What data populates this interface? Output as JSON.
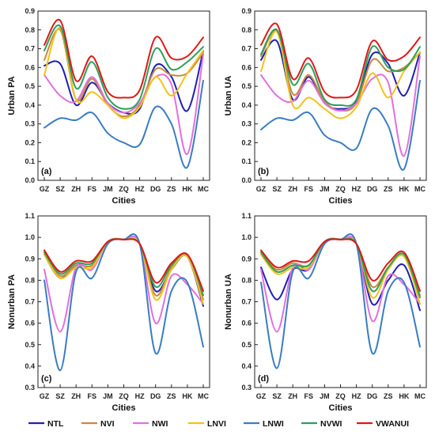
{
  "colors": {
    "NTL": "#1f1fb4",
    "NVI": "#c88a3c",
    "NWI": "#e070e0",
    "LNVI": "#f2c21a",
    "LNWI": "#3a7cc4",
    "NVWI": "#2ca05a",
    "VWANUI": "#e01818"
  },
  "legend": {
    "items": [
      "NTL",
      "NVI",
      "NWI",
      "LNVI",
      "LNWI",
      "NVWI",
      "VWANUI"
    ]
  },
  "chart_data": [
    {
      "type": "line",
      "panel_label": "(a)",
      "xlabel": "Cities",
      "ylabel": "Urban PA",
      "categories": [
        "GZ",
        "SZ",
        "ZH",
        "FS",
        "JM",
        "ZQ",
        "HZ",
        "DG",
        "ZS",
        "HK",
        "MC"
      ],
      "ylim": [
        0.0,
        0.9
      ],
      "yticks": [
        "0.0",
        "0.1",
        "0.2",
        "0.3",
        "0.4",
        "0.5",
        "0.6",
        "0.7",
        "0.8",
        "0.9"
      ],
      "series": [
        {
          "name": "NTL",
          "values": [
            0.61,
            0.62,
            0.4,
            0.52,
            0.41,
            0.36,
            0.38,
            0.61,
            0.55,
            0.37,
            0.69
          ]
        },
        {
          "name": "NVI",
          "values": [
            0.64,
            0.8,
            0.43,
            0.54,
            0.4,
            0.34,
            0.4,
            0.59,
            0.56,
            0.57,
            0.68
          ]
        },
        {
          "name": "NWI",
          "values": [
            0.56,
            0.45,
            0.42,
            0.55,
            0.41,
            0.36,
            0.41,
            0.55,
            0.51,
            0.14,
            0.67
          ]
        },
        {
          "name": "LNVI",
          "values": [
            0.56,
            0.81,
            0.43,
            0.47,
            0.4,
            0.33,
            0.39,
            0.55,
            0.45,
            0.57,
            0.69
          ]
        },
        {
          "name": "LNWI",
          "values": [
            0.28,
            0.33,
            0.32,
            0.36,
            0.25,
            0.2,
            0.19,
            0.39,
            0.3,
            0.07,
            0.53
          ]
        },
        {
          "name": "NVWI",
          "values": [
            0.69,
            0.82,
            0.49,
            0.63,
            0.44,
            0.38,
            0.43,
            0.7,
            0.59,
            0.63,
            0.71
          ]
        },
        {
          "name": "VWANUI",
          "values": [
            0.72,
            0.85,
            0.53,
            0.66,
            0.47,
            0.44,
            0.48,
            0.76,
            0.65,
            0.66,
            0.76
          ]
        }
      ]
    },
    {
      "type": "line",
      "panel_label": "(b)",
      "xlabel": "Cities",
      "ylabel": "Urban UA",
      "categories": [
        "GZ",
        "SZ",
        "ZH",
        "FS",
        "JM",
        "ZQ",
        "HZ",
        "DG",
        "ZS",
        "HK",
        "MC"
      ],
      "ylim": [
        0.0,
        0.9
      ],
      "yticks": [
        "0.0",
        "0.1",
        "0.2",
        "0.3",
        "0.4",
        "0.5",
        "0.6",
        "0.7",
        "0.8",
        "0.9"
      ],
      "series": [
        {
          "name": "NTL",
          "values": [
            0.64,
            0.74,
            0.43,
            0.55,
            0.41,
            0.38,
            0.42,
            0.67,
            0.62,
            0.45,
            0.68
          ]
        },
        {
          "name": "NVI",
          "values": [
            0.66,
            0.79,
            0.46,
            0.56,
            0.42,
            0.37,
            0.41,
            0.64,
            0.58,
            0.6,
            0.68
          ]
        },
        {
          "name": "NWI",
          "values": [
            0.56,
            0.45,
            0.42,
            0.53,
            0.41,
            0.37,
            0.41,
            0.54,
            0.52,
            0.13,
            0.66
          ]
        },
        {
          "name": "LNVI",
          "values": [
            0.58,
            0.79,
            0.4,
            0.44,
            0.38,
            0.33,
            0.39,
            0.57,
            0.44,
            0.58,
            0.68
          ]
        },
        {
          "name": "LNWI",
          "values": [
            0.27,
            0.33,
            0.32,
            0.36,
            0.24,
            0.2,
            0.17,
            0.38,
            0.29,
            0.06,
            0.53
          ]
        },
        {
          "name": "NVWI",
          "values": [
            0.67,
            0.8,
            0.51,
            0.62,
            0.43,
            0.4,
            0.43,
            0.71,
            0.6,
            0.59,
            0.71
          ]
        },
        {
          "name": "VWANUI",
          "values": [
            0.72,
            0.83,
            0.54,
            0.65,
            0.47,
            0.44,
            0.48,
            0.74,
            0.64,
            0.66,
            0.76
          ]
        }
      ]
    },
    {
      "type": "line",
      "panel_label": "(c)",
      "xlabel": "Cities",
      "ylabel": "Nonurban PA",
      "categories": [
        "GZ",
        "SZ",
        "ZH",
        "FS",
        "JM",
        "ZQ",
        "HZ",
        "DG",
        "ZS",
        "HK",
        "MC"
      ],
      "ylim": [
        0.3,
        1.1
      ],
      "yticks": [
        "0.3",
        "0.4",
        "0.5",
        "0.6",
        "0.7",
        "0.8",
        "0.9",
        "1.0",
        "1.1"
      ],
      "series": [
        {
          "name": "NTL",
          "values": [
            0.92,
            0.81,
            0.87,
            0.87,
            0.98,
            0.99,
            0.97,
            0.75,
            0.85,
            0.91,
            0.68
          ]
        },
        {
          "name": "NVI",
          "values": [
            0.93,
            0.82,
            0.87,
            0.87,
            0.98,
            0.99,
            0.97,
            0.73,
            0.86,
            0.92,
            0.71
          ]
        },
        {
          "name": "NWI",
          "values": [
            0.85,
            0.56,
            0.86,
            0.85,
            0.98,
            0.99,
            0.97,
            0.6,
            0.82,
            0.78,
            0.69
          ]
        },
        {
          "name": "LNVI",
          "values": [
            0.92,
            0.81,
            0.86,
            0.86,
            0.98,
            0.99,
            0.97,
            0.71,
            0.85,
            0.91,
            0.69
          ]
        },
        {
          "name": "LNWI",
          "values": [
            0.8,
            0.38,
            0.84,
            0.81,
            0.97,
            0.99,
            0.97,
            0.46,
            0.75,
            0.79,
            0.49
          ]
        },
        {
          "name": "NVWI",
          "values": [
            0.93,
            0.83,
            0.88,
            0.88,
            0.98,
            0.99,
            0.97,
            0.77,
            0.87,
            0.92,
            0.73
          ]
        },
        {
          "name": "VWANUI",
          "values": [
            0.94,
            0.84,
            0.89,
            0.89,
            0.98,
            0.99,
            0.97,
            0.79,
            0.88,
            0.92,
            0.75
          ]
        }
      ]
    },
    {
      "type": "line",
      "panel_label": "(d)",
      "xlabel": "Cities",
      "ylabel": "Nonurban UA",
      "categories": [
        "GZ",
        "SZ",
        "ZH",
        "FS",
        "JM",
        "ZQ",
        "HZ",
        "DG",
        "ZS",
        "HK",
        "MC"
      ],
      "ylim": [
        0.3,
        1.1
      ],
      "yticks": [
        "0.3",
        "0.4",
        "0.5",
        "0.6",
        "0.7",
        "0.8",
        "0.9",
        "1.0",
        "1.1"
      ],
      "series": [
        {
          "name": "NTL",
          "values": [
            0.86,
            0.71,
            0.85,
            0.85,
            0.98,
            0.99,
            0.97,
            0.69,
            0.8,
            0.87,
            0.66
          ]
        },
        {
          "name": "NVI",
          "values": [
            0.93,
            0.85,
            0.88,
            0.87,
            0.98,
            0.99,
            0.97,
            0.77,
            0.86,
            0.92,
            0.73
          ]
        },
        {
          "name": "NWI",
          "values": [
            0.85,
            0.56,
            0.86,
            0.85,
            0.98,
            0.99,
            0.97,
            0.61,
            0.82,
            0.78,
            0.69
          ]
        },
        {
          "name": "LNVI",
          "values": [
            0.92,
            0.83,
            0.86,
            0.86,
            0.98,
            0.99,
            0.97,
            0.72,
            0.85,
            0.91,
            0.69
          ]
        },
        {
          "name": "LNWI",
          "values": [
            0.79,
            0.39,
            0.84,
            0.81,
            0.97,
            0.99,
            0.97,
            0.46,
            0.75,
            0.79,
            0.49
          ]
        },
        {
          "name": "NVWI",
          "values": [
            0.93,
            0.84,
            0.87,
            0.87,
            0.98,
            0.99,
            0.97,
            0.75,
            0.86,
            0.92,
            0.72
          ]
        },
        {
          "name": "VWANUI",
          "values": [
            0.94,
            0.86,
            0.89,
            0.89,
            0.98,
            0.99,
            0.97,
            0.8,
            0.88,
            0.93,
            0.75
          ]
        }
      ]
    }
  ]
}
